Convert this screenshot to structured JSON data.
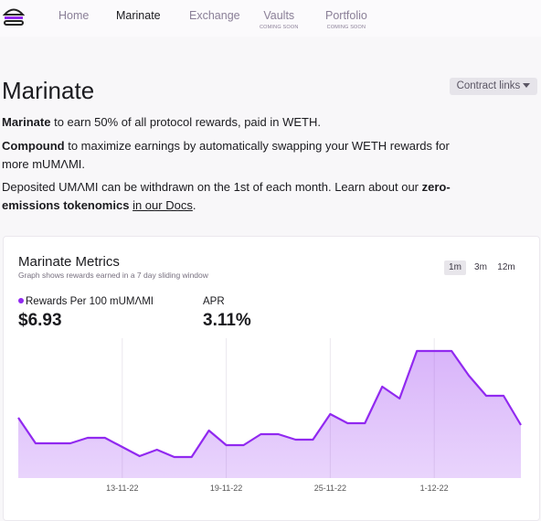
{
  "nav": {
    "links": [
      {
        "label": "Home"
      },
      {
        "label": "Marinate"
      },
      {
        "label": "Exchange"
      },
      {
        "label": "Vaults",
        "note": "COMING SOON"
      },
      {
        "label": "Portfolio",
        "note": "COMING SOON"
      }
    ]
  },
  "page": {
    "title": "Marinate",
    "contract_button": "Contract links",
    "paragraphs": [
      [
        "Marinate",
        " to earn 50% of all protocol rewards, paid in WETH."
      ],
      [
        "Compound",
        " to maximize earnings by automatically swapping your WETH rewards for more mUMΛMI."
      ],
      [
        "Deposited UMΛMI can be withdrawn on the 1st of each month. Learn about our ",
        "zero-emissions tokenomics",
        " ",
        "in our Docs",
        "."
      ]
    ]
  },
  "chart_data": {
    "type": "area",
    "title": "Marinate Metrics",
    "subtitle": "Graph shows rewards earned in a 7 day sliding window",
    "ranges": [
      "1m",
      "3m",
      "12m"
    ],
    "active_range": 0,
    "stats": [
      {
        "label": "Rewards Per 100 mUMΛMI",
        "value": "$6.93"
      },
      {
        "label": "APR",
        "value": "3.11%"
      }
    ],
    "categories": [
      null,
      null,
      null,
      null,
      null,
      null,
      "13-11-22",
      null,
      null,
      null,
      null,
      null,
      "19-11-22",
      null,
      null,
      null,
      null,
      null,
      "25-11-22",
      null,
      null,
      null,
      null,
      null,
      "1-12-22",
      null,
      null,
      null,
      null,
      null
    ],
    "series": [
      {
        "name": "Rewards Per 100 mUMΛMI",
        "color": "#9129f0",
        "values": [
          66,
          38,
          38,
          38,
          44,
          44,
          34,
          24,
          31,
          23,
          23,
          52,
          36,
          36,
          48,
          48,
          42,
          42,
          70,
          60,
          60,
          100,
          87,
          139,
          139,
          139,
          112,
          90,
          90,
          58
        ]
      }
    ],
    "ylim": [
      0,
      150
    ],
    "grid": true
  }
}
